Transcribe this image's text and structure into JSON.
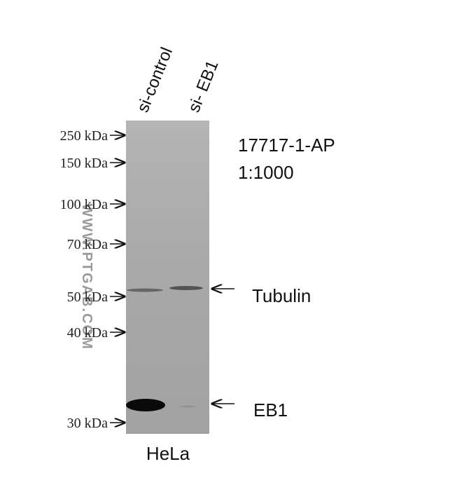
{
  "lanes": [
    "si-control",
    "si- EB1"
  ],
  "markers": [
    "250 kDa",
    "150 kDa",
    "100 kDa",
    "70 kDa",
    "50 kDa",
    "40 kDa",
    "30 kDa"
  ],
  "antibody": {
    "catalog": "17717-1-AP",
    "dilution": "1:1000"
  },
  "bands": [
    "Tubulin",
    "EB1"
  ],
  "cell_line": "HeLa",
  "watermark": "WWW.PTGAB.COM"
}
